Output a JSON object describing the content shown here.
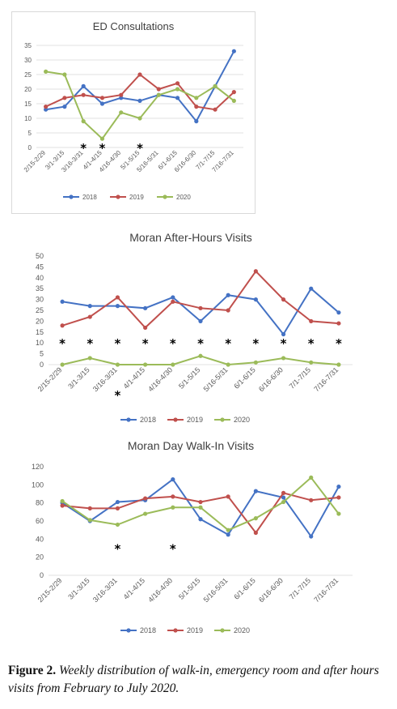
{
  "colors": {
    "2018": "#4472c4",
    "2019": "#c0504d",
    "2020": "#9bbb59",
    "grid": "#d9d9d9",
    "axis_text": "#595959"
  },
  "caption": {
    "label": "Figure 2.",
    "text": "Weekly distribution of walk-in, emergency room and after hours visits from February to July 2020."
  },
  "chart_data": [
    {
      "type": "line",
      "title": "ED Consultations",
      "categories": [
        "2/15-2/29",
        "3/1-3/15",
        "3/16-3/31",
        "4/1-4/15",
        "4/16-4/30",
        "5/1-5/15",
        "5/16-5/31",
        "6/1-6/15",
        "6/16-6/30",
        "7/1-7/15",
        "7/16-7/31"
      ],
      "ylim": [
        0,
        35
      ],
      "yticks": [
        "0",
        "5",
        "10",
        "15",
        "20",
        "25",
        "30",
        "35"
      ],
      "grid": true,
      "legend": "bottom",
      "series": [
        {
          "name": "2018",
          "values": [
            13,
            14,
            21,
            15,
            17,
            16,
            18,
            17,
            9,
            21,
            33
          ]
        },
        {
          "name": "2019",
          "values": [
            14,
            17,
            18,
            17,
            18,
            25,
            20,
            22,
            14,
            13,
            19
          ]
        },
        {
          "name": "2020",
          "values": [
            26,
            25,
            9,
            3,
            12,
            10,
            18,
            20,
            17,
            21,
            16
          ]
        }
      ],
      "annotations": [
        {
          "category": "3/16-3/31",
          "y": 0,
          "text": "*"
        },
        {
          "category": "4/1-4/15",
          "y": 0,
          "text": "*"
        },
        {
          "category": "5/1-5/15",
          "y": 0,
          "text": "*"
        }
      ]
    },
    {
      "type": "line",
      "title": "Moran After-Hours Visits",
      "categories": [
        "2/15-2/29",
        "3/1-3/15",
        "3/16-3/31",
        "4/1-4/15",
        "4/16-4/30",
        "5/1-5/15",
        "5/16-5/31",
        "6/1-6/15",
        "6/16-6/30",
        "7/1-7/15",
        "7/16-7/31"
      ],
      "ylim": [
        0,
        50
      ],
      "yticks": [
        "0",
        "5",
        "10",
        "15",
        "20",
        "25",
        "30",
        "35",
        "40",
        "45",
        "50"
      ],
      "grid": false,
      "legend": "bottom",
      "series": [
        {
          "name": "2018",
          "values": [
            29,
            27,
            27,
            26,
            31,
            20,
            32,
            30,
            14,
            35,
            24
          ]
        },
        {
          "name": "2019",
          "values": [
            18,
            22,
            31,
            17,
            29,
            26,
            25,
            43,
            30,
            20,
            19
          ]
        },
        {
          "name": "2020",
          "values": [
            0,
            3,
            0,
            0,
            0,
            4,
            0,
            1,
            3,
            1,
            0
          ]
        }
      ],
      "annotations": [
        {
          "category": "2/15-2/29",
          "y": 10,
          "text": "*"
        },
        {
          "category": "3/1-3/15",
          "y": 10,
          "text": "*"
        },
        {
          "category": "3/16-3/31",
          "y": 10,
          "text": "*"
        },
        {
          "category": "4/1-4/15",
          "y": 10,
          "text": "*"
        },
        {
          "category": "4/16-4/30",
          "y": 10,
          "text": "*"
        },
        {
          "category": "5/1-5/15",
          "y": 10,
          "text": "*"
        },
        {
          "category": "5/16-5/31",
          "y": 10,
          "text": "*"
        },
        {
          "category": "6/1-6/15",
          "y": 10,
          "text": "*"
        },
        {
          "category": "6/16-6/30",
          "y": 10,
          "text": "*"
        },
        {
          "category": "7/1-7/15",
          "y": 10,
          "text": "*"
        },
        {
          "category": "7/16-7/31",
          "y": 10,
          "text": "*"
        },
        {
          "category": "3/16-3/31",
          "y": -15,
          "text": "*"
        }
      ]
    },
    {
      "type": "line",
      "title": "Moran Day Walk-In Visits",
      "categories": [
        "2/15-2/29",
        "3/1-3/15",
        "3/16-3/31",
        "4/1-4/15",
        "4/16-4/30",
        "5/1-5/15",
        "5/16-5/31",
        "6/1-6/15",
        "6/16-6/30",
        "7/1-7/15",
        "7/16-7/31"
      ],
      "ylim": [
        0,
        120
      ],
      "yticks": [
        "0",
        "20",
        "40",
        "60",
        "80",
        "100",
        "120"
      ],
      "grid": false,
      "legend": "bottom",
      "series": [
        {
          "name": "2018",
          "values": [
            80,
            60,
            81,
            83,
            106,
            62,
            45,
            93,
            86,
            43,
            98
          ]
        },
        {
          "name": "2019",
          "values": [
            77,
            74,
            74,
            85,
            87,
            81,
            87,
            47,
            91,
            83,
            86
          ]
        },
        {
          "name": "2020",
          "values": [
            82,
            61,
            56,
            68,
            75,
            75,
            50,
            63,
            81,
            108,
            68
          ]
        }
      ],
      "annotations": [
        {
          "category": "3/16-3/31",
          "y": 30,
          "text": "*"
        },
        {
          "category": "4/16-4/30",
          "y": 30,
          "text": "*"
        }
      ]
    }
  ]
}
